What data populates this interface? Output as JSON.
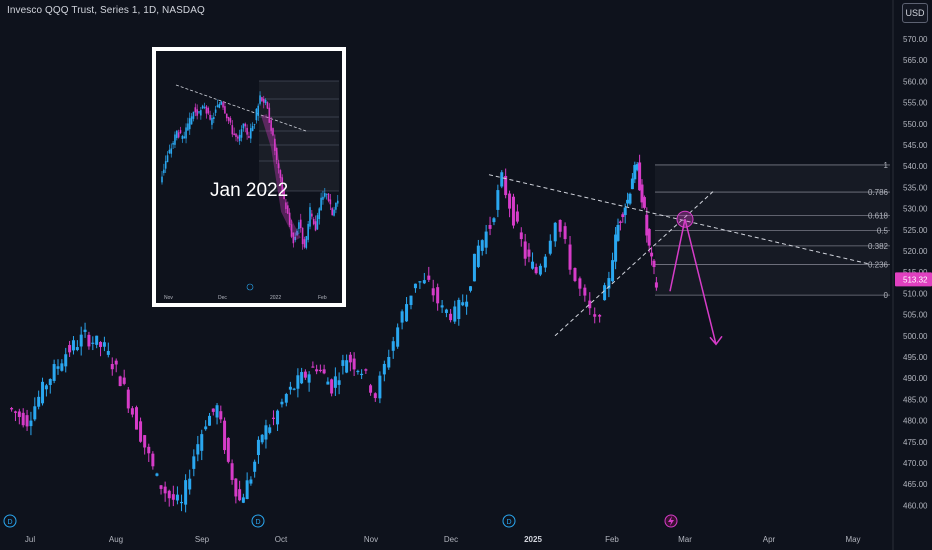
{
  "header": {
    "title": "Invesco QQQ Trust, Series 1, 1D, NASDAQ",
    "currency_button": "USD"
  },
  "price_marker": {
    "value": "513.32",
    "color": "#e040c0"
  },
  "inset": {
    "label": "Jan 2022",
    "x_ticks": [
      "Nov",
      "Dec",
      "2022",
      "Feb"
    ]
  },
  "colors": {
    "up": "#2aa7f0",
    "down": "#d63cc8",
    "background": "#0e121c",
    "projection": "#d63cc8"
  },
  "chart_data": {
    "type": "candlestick",
    "title": "Invesco QQQ Trust, Series 1, 1D, NASDAQ",
    "x_ticks": [
      "Jul",
      "Aug",
      "Sep",
      "Oct",
      "Nov",
      "Dec",
      "2025",
      "Feb",
      "Mar",
      "Apr",
      "May"
    ],
    "y_ticks": [
      460,
      465,
      470,
      475,
      480,
      485,
      490,
      495,
      500,
      505,
      510,
      515,
      520,
      525,
      530,
      535,
      540,
      545,
      550,
      555,
      560,
      565,
      570
    ],
    "ylim": [
      457,
      574
    ],
    "last_price": 513.32,
    "close_path": [
      [
        "Jul",
        483
      ],
      [
        "Jul",
        480
      ],
      [
        "Jul",
        489
      ],
      [
        "Jul",
        496
      ],
      [
        "Jul",
        500
      ],
      [
        "Jul",
        497
      ],
      [
        "Aug",
        490
      ],
      [
        "Aug",
        482
      ],
      [
        "Aug",
        474
      ],
      [
        "Aug",
        466
      ],
      [
        "Aug",
        462
      ],
      [
        "Aug",
        460
      ],
      [
        "Aug",
        472
      ],
      [
        "Sep",
        480
      ],
      [
        "Sep",
        483
      ],
      [
        "Sep",
        470
      ],
      [
        "Sep",
        461
      ],
      [
        "Sep",
        467
      ],
      [
        "Sep",
        477
      ],
      [
        "Sep",
        480
      ],
      [
        "Oct",
        486
      ],
      [
        "Oct",
        490
      ],
      [
        "Oct",
        493
      ],
      [
        "Oct",
        488
      ],
      [
        "Oct",
        495
      ],
      [
        "Oct",
        492
      ],
      [
        "Nov",
        486
      ],
      [
        "Nov",
        496
      ],
      [
        "Nov",
        505
      ],
      [
        "Nov",
        513
      ],
      [
        "Nov",
        512
      ],
      [
        "Nov",
        506
      ],
      [
        "Dec",
        505
      ],
      [
        "Dec",
        510
      ],
      [
        "Dec",
        521
      ],
      [
        "Dec",
        526
      ],
      [
        "Dec",
        537
      ],
      [
        "Dec",
        528
      ],
      [
        "Dec",
        519
      ],
      [
        "2025",
        515
      ],
      [
        "2025",
        520
      ],
      [
        "2025",
        528
      ],
      [
        "2025",
        521
      ],
      [
        "2025",
        513
      ],
      [
        "2025",
        508
      ],
      [
        "2025",
        503
      ],
      [
        "2025",
        510
      ],
      [
        "Feb",
        519
      ],
      [
        "Feb",
        526
      ],
      [
        "Feb",
        530
      ],
      [
        "Feb",
        532
      ],
      [
        "Feb",
        538
      ],
      [
        "Feb",
        539
      ],
      [
        "Feb",
        533
      ],
      [
        "Feb",
        524
      ],
      [
        "Feb",
        517
      ],
      [
        "Feb",
        512
      ]
    ],
    "trendlines": [
      {
        "name": "descending resistance",
        "from": [
          "Dec",
          538
        ],
        "to": [
          "May",
          517
        ]
      },
      {
        "name": "ascending support",
        "from": [
          "2025",
          500
        ],
        "to": [
          "Mar",
          534
        ]
      }
    ],
    "fibonacci_retracement": {
      "levels": [
        {
          "label": "1",
          "price": 540.3
        },
        {
          "label": "0.786",
          "price": 533.9
        },
        {
          "label": "0.618",
          "price": 528.4
        },
        {
          "label": "0.5",
          "price": 524.8
        },
        {
          "label": "0.382",
          "price": 521.2
        },
        {
          "label": "0.236",
          "price": 516.8
        },
        {
          "label": "0",
          "price": 509.6
        }
      ]
    },
    "projection": {
      "points": [
        [
          "Feb",
          510.5
        ],
        [
          "Mar",
          527.5
        ],
        [
          "Mar",
          498
        ]
      ]
    },
    "event_markers": [
      "D",
      "D",
      "D",
      "D",
      "earnings"
    ]
  }
}
